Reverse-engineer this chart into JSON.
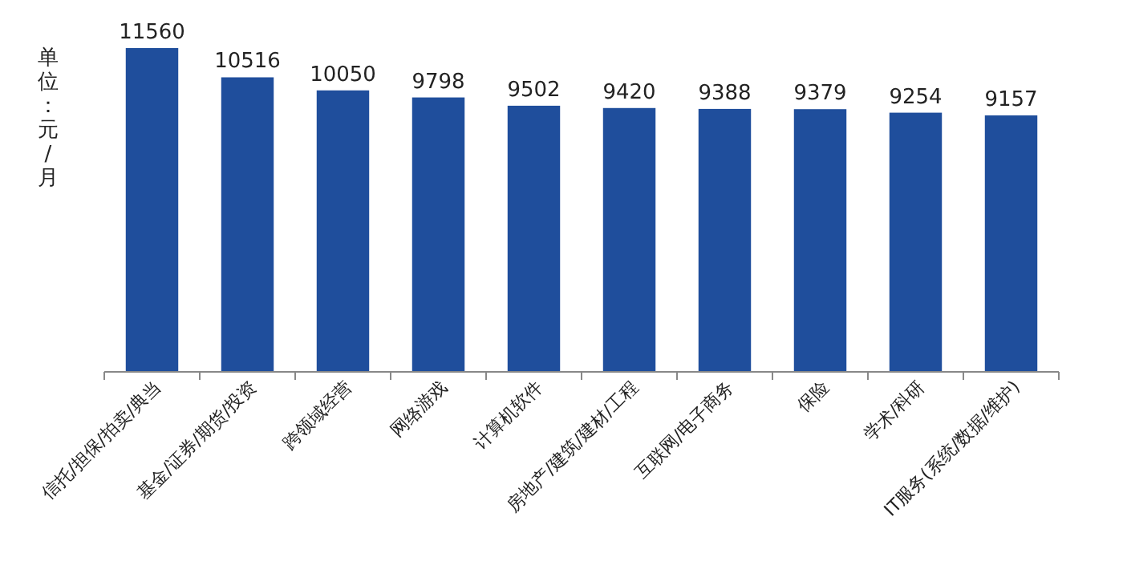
{
  "chart_data": {
    "type": "bar",
    "ylabel": "单位：元/月",
    "categories": [
      "信托/担保/拍卖/典当",
      "基金/证券/期货/投资",
      "跨领域经营",
      "网络游戏",
      "计算机软件",
      "房地产/建筑/建材/工程",
      "互联网/电子商务",
      "保险",
      "学术/科研",
      "IT服务(系统/数据/维护)"
    ],
    "values": [
      11560,
      10516,
      10050,
      9798,
      9502,
      9420,
      9388,
      9379,
      9254,
      9157
    ],
    "color": "#1f4e9c",
    "data_labels": true,
    "tick_labels": "x"
  }
}
